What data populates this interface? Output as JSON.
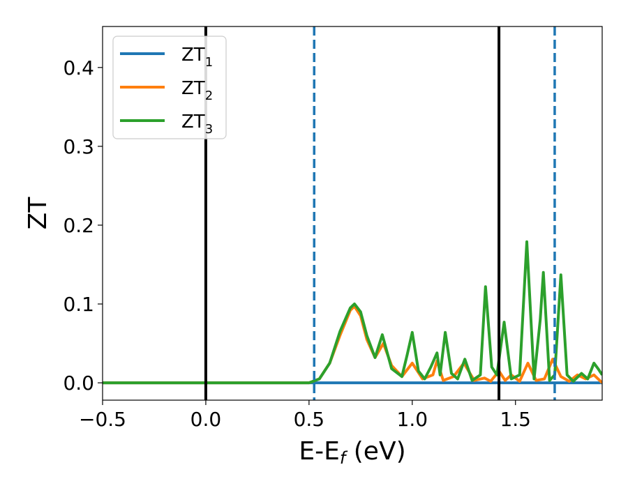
{
  "chart_data": {
    "type": "line",
    "xlabel": "E-E",
    "xlabel_sub": "f",
    "xlabel_unit": " (eV)",
    "ylabel": "ZT",
    "xlim": [
      -0.5,
      1.92
    ],
    "ylim": [
      -0.022,
      0.452
    ],
    "xticks": [
      -0.5,
      0.0,
      0.5,
      1.0,
      1.5
    ],
    "xtick_labels": [
      "−0.5",
      "0.0",
      "0.5",
      "1.0",
      "1.5"
    ],
    "yticks": [
      0.0,
      0.1,
      0.2,
      0.3,
      0.4
    ],
    "ytick_labels": [
      "0.0",
      "0.1",
      "0.2",
      "0.3",
      "0.4"
    ],
    "grid": false,
    "legend": {
      "placement": "top-left"
    },
    "vlines": [
      {
        "x": 0.0,
        "style": "solid",
        "color": "#000000"
      },
      {
        "x": 0.525,
        "style": "dashed",
        "color": "#1f77b4"
      },
      {
        "x": 1.42,
        "style": "solid",
        "color": "#000000"
      },
      {
        "x": 1.69,
        "style": "dashed",
        "color": "#1f77b4"
      }
    ],
    "series": [
      {
        "name": "ZT",
        "name_sub": "1",
        "color": "#1f77b4",
        "x": [
          -0.5,
          0.0,
          0.5,
          1.0,
          1.5,
          1.92
        ],
        "y": [
          0.0,
          0.0,
          0.0,
          0.0,
          0.0,
          0.0
        ]
      },
      {
        "name": "ZT",
        "name_sub": "2",
        "color": "#ff7f0e",
        "x": [
          -0.5,
          0.5,
          0.55,
          0.6,
          0.65,
          0.7,
          0.72,
          0.75,
          0.78,
          0.82,
          0.86,
          0.9,
          0.95,
          1.0,
          1.05,
          1.1,
          1.12,
          1.15,
          1.2,
          1.25,
          1.3,
          1.35,
          1.38,
          1.42,
          1.45,
          1.48,
          1.52,
          1.56,
          1.6,
          1.64,
          1.68,
          1.72,
          1.76,
          1.8,
          1.84,
          1.88,
          1.92
        ],
        "y": [
          0.0,
          0.0,
          0.005,
          0.025,
          0.06,
          0.092,
          0.097,
          0.085,
          0.055,
          0.032,
          0.05,
          0.022,
          0.008,
          0.025,
          0.005,
          0.01,
          0.028,
          0.003,
          0.008,
          0.025,
          0.003,
          0.006,
          0.002,
          0.015,
          0.003,
          0.01,
          0.002,
          0.025,
          0.003,
          0.005,
          0.03,
          0.008,
          0.002,
          0.01,
          0.005,
          0.01,
          0.0
        ]
      },
      {
        "name": "ZT",
        "name_sub": "3",
        "color": "#2ca02c",
        "x": [
          -0.5,
          0.5,
          0.55,
          0.6,
          0.65,
          0.7,
          0.72,
          0.75,
          0.78,
          0.82,
          0.855,
          0.9,
          0.95,
          0.975,
          1.0,
          1.03,
          1.06,
          1.09,
          1.12,
          1.135,
          1.16,
          1.19,
          1.22,
          1.255,
          1.29,
          1.33,
          1.355,
          1.385,
          1.41,
          1.445,
          1.48,
          1.52,
          1.555,
          1.59,
          1.62,
          1.635,
          1.665,
          1.69,
          1.72,
          1.75,
          1.78,
          1.82,
          1.85,
          1.88,
          1.9,
          1.92
        ],
        "y": [
          0.0,
          0.0,
          0.005,
          0.025,
          0.065,
          0.095,
          0.1,
          0.09,
          0.06,
          0.032,
          0.061,
          0.018,
          0.008,
          0.035,
          0.064,
          0.015,
          0.005,
          0.02,
          0.038,
          0.01,
          0.064,
          0.012,
          0.005,
          0.03,
          0.003,
          0.01,
          0.122,
          0.02,
          0.01,
          0.077,
          0.005,
          0.01,
          0.179,
          0.005,
          0.08,
          0.14,
          0.003,
          0.01,
          0.137,
          0.01,
          0.002,
          0.012,
          0.005,
          0.025,
          0.018,
          0.01
        ]
      }
    ]
  }
}
